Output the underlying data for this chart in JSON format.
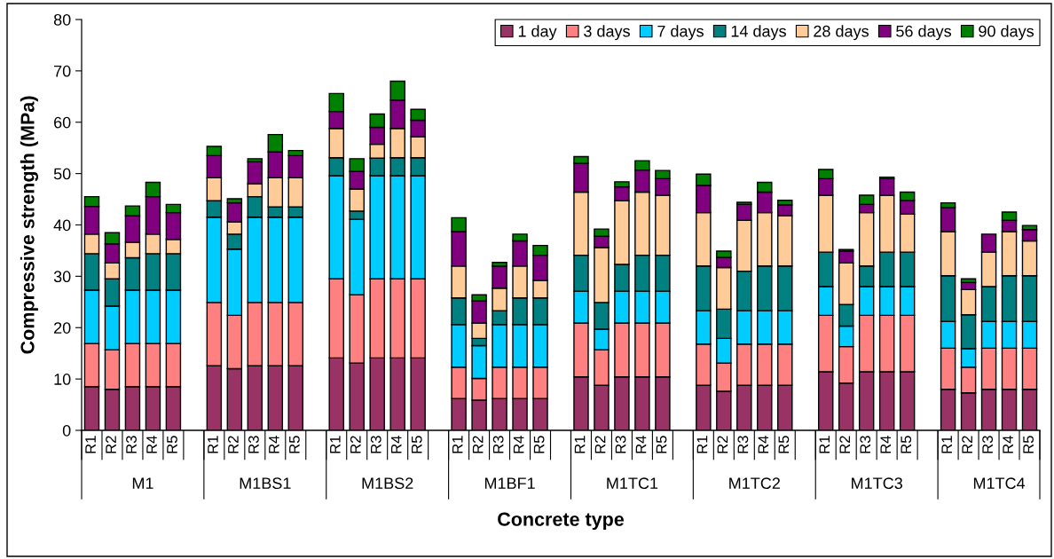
{
  "chart_data": {
    "type": "bar",
    "stacked": true,
    "xlabel": "Concrete type",
    "ylabel": "Compressive strength (MPa)",
    "categories": [
      "R1",
      "R2",
      "R3",
      "R4",
      "R5",
      null,
      "R1",
      "R2",
      "R3",
      "R4",
      "R5",
      null,
      "R1",
      "R2",
      "R3",
      "R4",
      "R5",
      null,
      "R1",
      "R2",
      "R3",
      "R4",
      "R5",
      null,
      "R1",
      "R2",
      "R3",
      "R4",
      "R5",
      null,
      "R1",
      "R2",
      "R3",
      "R4",
      "R5",
      null,
      "R1",
      "R2",
      "R3",
      "R4",
      "R5",
      null,
      "R1",
      "R2",
      "R3",
      "R4",
      "R5"
    ],
    "annotations": [
      "M1",
      "M1BS1",
      "M1BS2",
      "M1BF1",
      "M1TC1",
      "M1TC2",
      "M1TC3",
      "M1TC4"
    ],
    "series": [
      {
        "name": "1 day",
        "color": "#993366",
        "values": [
          8.5,
          8.0,
          8.5,
          8.5,
          8.5,
          null,
          12.6,
          12.0,
          12.6,
          12.6,
          12.6,
          null,
          14.1,
          13.1,
          14.1,
          14.1,
          14.1,
          null,
          6.2,
          5.9,
          6.2,
          6.2,
          6.2,
          null,
          10.4,
          8.8,
          10.4,
          10.4,
          10.4,
          null,
          8.8,
          7.6,
          8.8,
          8.8,
          8.8,
          null,
          11.4,
          9.2,
          11.4,
          11.4,
          11.4,
          null,
          8.0,
          7.3,
          8.0,
          8.0,
          8.0
        ]
      },
      {
        "name": "3 days",
        "color": "#ff8080",
        "values": [
          8.4,
          7.7,
          8.4,
          8.4,
          8.4,
          null,
          12.3,
          10.4,
          12.3,
          12.3,
          12.3,
          null,
          15.4,
          13.3,
          15.4,
          15.4,
          15.4,
          null,
          6.1,
          4.2,
          6.1,
          6.1,
          6.1,
          null,
          10.5,
          6.9,
          10.5,
          10.5,
          10.5,
          null,
          8.0,
          5.5,
          8.0,
          8.0,
          8.0,
          null,
          11.0,
          7.1,
          11.0,
          11.0,
          11.0,
          null,
          8.0,
          5.0,
          8.0,
          8.0,
          8.0
        ]
      },
      {
        "name": "7 days",
        "color": "#00ccff",
        "values": [
          10.4,
          8.5,
          10.4,
          10.4,
          10.4,
          null,
          16.6,
          12.9,
          16.6,
          16.6,
          16.6,
          null,
          20.1,
          14.7,
          20.1,
          20.1,
          20.1,
          null,
          8.3,
          6.4,
          8.3,
          8.3,
          8.3,
          null,
          6.2,
          4.0,
          6.2,
          6.2,
          6.2,
          null,
          6.5,
          4.8,
          6.5,
          6.5,
          6.5,
          null,
          5.6,
          4.0,
          5.6,
          5.6,
          5.6,
          null,
          5.2,
          3.6,
          5.2,
          5.2,
          5.2
        ]
      },
      {
        "name": "14 days",
        "color": "#008080",
        "values": [
          7.1,
          5.3,
          6.3,
          7.1,
          7.1,
          null,
          3.2,
          2.9,
          4.0,
          2.0,
          2.0,
          null,
          3.5,
          1.6,
          3.4,
          3.5,
          3.5,
          null,
          5.2,
          1.4,
          2.7,
          5.2,
          5.2,
          null,
          7.0,
          5.2,
          5.2,
          7.0,
          7.0,
          null,
          8.7,
          5.7,
          7.7,
          8.7,
          8.7,
          null,
          6.7,
          4.2,
          4.0,
          6.7,
          6.7,
          null,
          8.9,
          6.6,
          6.8,
          8.9,
          8.9
        ]
      },
      {
        "name": "28 days",
        "color": "#ffcc99",
        "values": [
          3.8,
          3.1,
          3.0,
          3.8,
          2.8,
          null,
          4.5,
          2.4,
          2.5,
          5.7,
          5.7,
          null,
          5.7,
          4.3,
          2.7,
          5.7,
          4.1,
          null,
          6.2,
          3.0,
          4.4,
          6.2,
          3.4,
          null,
          12.3,
          10.7,
          12.4,
          12.3,
          11.7,
          null,
          10.4,
          8.1,
          9.9,
          10.4,
          9.8,
          null,
          11.1,
          8.1,
          10.4,
          11.1,
          7.4,
          null,
          8.6,
          4.9,
          6.7,
          8.6,
          6.8
        ]
      },
      {
        "name": "56 days",
        "color": "#800080",
        "values": [
          5.4,
          3.7,
          5.2,
          7.3,
          5.2,
          null,
          4.3,
          3.7,
          4.3,
          5.0,
          4.3,
          null,
          3.3,
          3.4,
          3.3,
          5.5,
          3.2,
          null,
          6.7,
          4.3,
          4.3,
          4.9,
          4.9,
          null,
          5.6,
          2.2,
          2.7,
          4.3,
          3.2,
          null,
          5.3,
          2.0,
          3.1,
          4.0,
          2.1,
          null,
          3.2,
          2.3,
          1.6,
          3.2,
          2.7,
          null,
          4.7,
          1.4,
          3.5,
          2.2,
          2.2
        ]
      },
      {
        "name": "90 days",
        "color": "#008000",
        "values": [
          1.9,
          2.2,
          1.9,
          2.8,
          1.6,
          null,
          1.8,
          0.8,
          0.6,
          3.4,
          1.0,
          null,
          3.5,
          2.5,
          2.6,
          3.7,
          2.1,
          null,
          2.7,
          1.2,
          0.7,
          1.3,
          1.9,
          null,
          1.3,
          1.4,
          1.0,
          1.8,
          1.6,
          null,
          2.2,
          1.2,
          0.4,
          1.9,
          0.9,
          null,
          1.8,
          0.3,
          1.8,
          0.3,
          1.6,
          null,
          0.9,
          0.7,
          null,
          1.6,
          0.8
        ]
      }
    ],
    "ylim": [
      0,
      80
    ],
    "yticks": [
      0,
      10,
      20,
      30,
      40,
      50,
      60,
      70,
      80
    ],
    "legend": "top right"
  }
}
